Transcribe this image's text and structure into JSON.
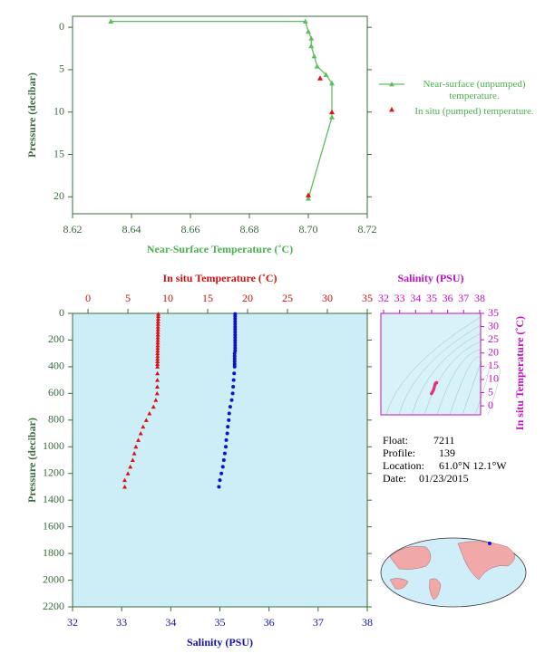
{
  "chart_data": [
    {
      "type": "profile",
      "xlabel": "Near-Surface Temperature (˚C)",
      "ylabel": "Pressure (decibar)",
      "xlim": [
        8.62,
        8.72
      ],
      "xticks": [
        8.62,
        8.64,
        8.66,
        8.68,
        {
          "value": 8.7,
          "label": "8.70"
        },
        8.72
      ],
      "ylim": [
        22,
        -1.3
      ],
      "yticks": [
        0,
        5,
        10,
        15,
        20
      ],
      "axis_color": "#3b6b3b",
      "label_color": "#4caf50",
      "series": [
        {
          "name": "Near-surface (unpumped) temperature.",
          "color": "#5cbf5c",
          "line": true,
          "x": [
            8.633,
            8.699,
            8.7,
            8.701,
            8.701,
            8.702,
            8.703,
            8.706,
            8.708,
            8.708,
            8.7
          ],
          "y": [
            -0.7,
            -0.7,
            0.5,
            1.3,
            2.2,
            3.4,
            4.6,
            5.6,
            6.6,
            10.6,
            20.2
          ]
        },
        {
          "name": "In situ (pumped) temperature.",
          "color": "#e01010",
          "line": false,
          "x": [
            8.704,
            8.708,
            8.7
          ],
          "y": [
            6.0,
            10.0,
            19.8
          ]
        }
      ]
    },
    {
      "type": "profile",
      "xlabel": "Salinity (PSU)",
      "x2label": "In situ Temperature (˚C)",
      "ylabel": "Pressure (decibar)",
      "xlim": [
        32,
        38
      ],
      "xticks": [
        32,
        33,
        34,
        35,
        36,
        37,
        38
      ],
      "x2lim": [
        -1.94,
        35
      ],
      "x2ticks": [
        0,
        5,
        10,
        15,
        20,
        25,
        30,
        35
      ],
      "ylim": [
        2200,
        0
      ],
      "yticks": [
        0,
        200,
        400,
        600,
        800,
        1000,
        1200,
        1400,
        1600,
        1800,
        2000,
        2200
      ],
      "background": "#cdeef7",
      "axis_color": "#3b6b3b",
      "x_color": "#1010b0",
      "x2_color": "#d01010",
      "y": [
        4,
        20,
        40,
        60,
        80,
        100,
        120,
        140,
        160,
        180,
        200,
        220,
        240,
        260,
        280,
        300,
        320,
        340,
        360,
        380,
        400,
        450,
        500,
        550,
        600,
        650,
        700,
        750,
        800,
        850,
        900,
        950,
        1000,
        1050,
        1100,
        1150,
        1200,
        1250,
        1300
      ],
      "series": [
        {
          "axis": "x2",
          "color": "#e01010",
          "marker": "triangle",
          "x": [
            8.8,
            8.8,
            8.79,
            8.78,
            8.78,
            8.77,
            8.77,
            8.76,
            8.76,
            8.75,
            8.75,
            8.74,
            8.74,
            8.73,
            8.73,
            8.72,
            8.72,
            8.71,
            8.71,
            8.7,
            8.7,
            8.7,
            8.69,
            8.68,
            8.66,
            8.5,
            8.2,
            7.7,
            7.3,
            6.9,
            6.6,
            6.3,
            6.0,
            5.8,
            5.6,
            5.3,
            5.0,
            4.6,
            4.6
          ]
        },
        {
          "axis": "x",
          "color": "#1010d0",
          "marker": "circle",
          "x": [
            35.31,
            35.31,
            35.31,
            35.31,
            35.31,
            35.31,
            35.31,
            35.31,
            35.31,
            35.31,
            35.31,
            35.31,
            35.31,
            35.31,
            35.31,
            35.3,
            35.3,
            35.3,
            35.3,
            35.3,
            35.3,
            35.29,
            35.28,
            35.27,
            35.26,
            35.24,
            35.21,
            35.19,
            35.18,
            35.16,
            35.15,
            35.13,
            35.12,
            35.1,
            35.08,
            35.06,
            35.03,
            35.0,
            34.98
          ]
        }
      ]
    },
    {
      "type": "ts",
      "xlabel": "Salinity (PSU)",
      "ylabel": "In situ Temperature (˚C)",
      "xlim": [
        31.83,
        38.06
      ],
      "xticks": [
        32,
        33,
        34,
        35,
        36,
        37,
        38
      ],
      "ylim": [
        -3.4,
        35
      ],
      "yticks": [
        0,
        5,
        10,
        15,
        20,
        25,
        30,
        35
      ],
      "axis_color": "#c010c0",
      "color": "#e8307a",
      "background": "#d8f2fa"
    }
  ],
  "float_info": [
    [
      "Float:",
      "7211"
    ],
    [
      "Profile:",
      "139"
    ],
    [
      "Location:",
      "61.0°N  12.1°W"
    ],
    [
      "Date:",
      "01/23/2015"
    ]
  ]
}
